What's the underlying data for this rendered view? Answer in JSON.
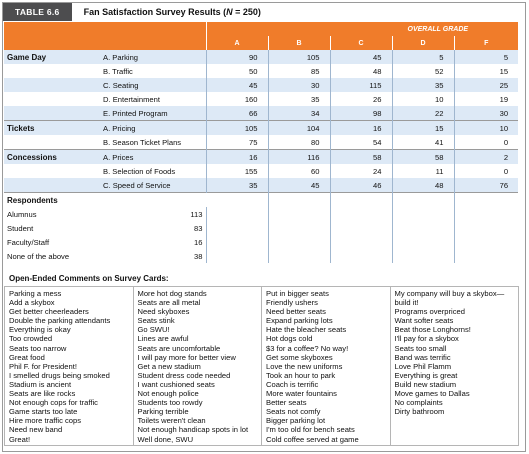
{
  "table_tag": "TABLE 6.6",
  "caption": {
    "text": "Fan Satisfaction Survey Results (",
    "n_label": "N",
    "n_value": " = 250)"
  },
  "overall_grade_label": "OVERALL GRADE",
  "grade_columns": [
    "A",
    "B",
    "C",
    "D",
    "F"
  ],
  "groups": [
    {
      "name": "Game Day",
      "rows": [
        {
          "label": "A. Parking",
          "values": [
            "90",
            "105",
            "45",
            "5",
            "5"
          ]
        },
        {
          "label": "B. Traffic",
          "values": [
            "50",
            "85",
            "48",
            "52",
            "15"
          ]
        },
        {
          "label": "C. Seating",
          "values": [
            "45",
            "30",
            "115",
            "35",
            "25"
          ]
        },
        {
          "label": "D. Entertainment",
          "values": [
            "160",
            "35",
            "26",
            "10",
            "19"
          ]
        },
        {
          "label": "E. Printed Program",
          "values": [
            "66",
            "34",
            "98",
            "22",
            "30"
          ]
        }
      ]
    },
    {
      "name": "Tickets",
      "rows": [
        {
          "label": "A. Pricing",
          "values": [
            "105",
            "104",
            "16",
            "15",
            "10"
          ]
        },
        {
          "label": "B. Season Ticket Plans",
          "values": [
            "75",
            "80",
            "54",
            "41",
            "0"
          ]
        }
      ]
    },
    {
      "name": "Concessions",
      "rows": [
        {
          "label": "A. Prices",
          "values": [
            "16",
            "116",
            "58",
            "58",
            "2"
          ]
        },
        {
          "label": "B. Selection of Foods",
          "values": [
            "155",
            "60",
            "24",
            "11",
            "0"
          ]
        },
        {
          "label": "C. Speed of Service",
          "values": [
            "35",
            "45",
            "46",
            "48",
            "76"
          ]
        }
      ]
    }
  ],
  "respondents": {
    "title": "Respondents",
    "rows": [
      {
        "label": "Alumnus",
        "value": "113"
      },
      {
        "label": "Student",
        "value": "83"
      },
      {
        "label": "Faculty/Staff",
        "value": "16"
      },
      {
        "label": "None of the above",
        "value": "38"
      }
    ]
  },
  "comments_title": "Open-Ended Comments on Survey Cards:",
  "comments": [
    [
      "Parking a mess",
      "Add a skybox",
      "Get better cheerleaders",
      "Double the parking attendants",
      "Everything is okay",
      "Too crowded",
      "Seats too narrow",
      "Great food",
      "Phil F. for President!",
      "I smelled drugs being smoked",
      "Stadium is ancient",
      "Seats are like rocks",
      "Not enough cops for traffic",
      "Game starts too late",
      "Hire more traffic cops",
      "Need new band",
      "Great!"
    ],
    [
      "More hot dog stands",
      "Seats are all metal",
      "Need skyboxes",
      "Seats stink",
      "Go SWU!",
      "Lines are awful",
      "Seats are uncomfortable",
      "I will pay more for better view",
      "Get a new stadium",
      "Student dress code needed",
      "I want cushioned seats",
      "Not enough police",
      "Students too rowdy",
      "Parking terrible",
      "Toilets weren't clean",
      "Not enough handicap spots in lot",
      "Well done, SWU"
    ],
    [
      "Put in bigger seats",
      "Friendly ushers",
      "Need better seats",
      "Expand parking lots",
      "Hate the bleacher seats",
      "Hot dogs cold",
      "$3 for a coffee? No way!",
      "Get some skyboxes",
      "Love the new uniforms",
      "Took an hour to park",
      "Coach is terrific",
      "More water fountains",
      "Better seats",
      "Seats not comfy",
      "Bigger parking lot",
      "I'm too old for bench seats",
      "Cold coffee served at game"
    ],
    [
      "My company will buy a skybox—",
      "build it!",
      "Programs overpriced",
      "Want softer seats",
      "Beat those Longhorns!",
      "I'll pay for a skybox",
      "Seats too small",
      "Band was terrific",
      "Love Phil Flamm",
      "Everything is great",
      "Build new stadium",
      "Move games to Dallas",
      "No complaints",
      "Dirty bathroom"
    ]
  ]
}
